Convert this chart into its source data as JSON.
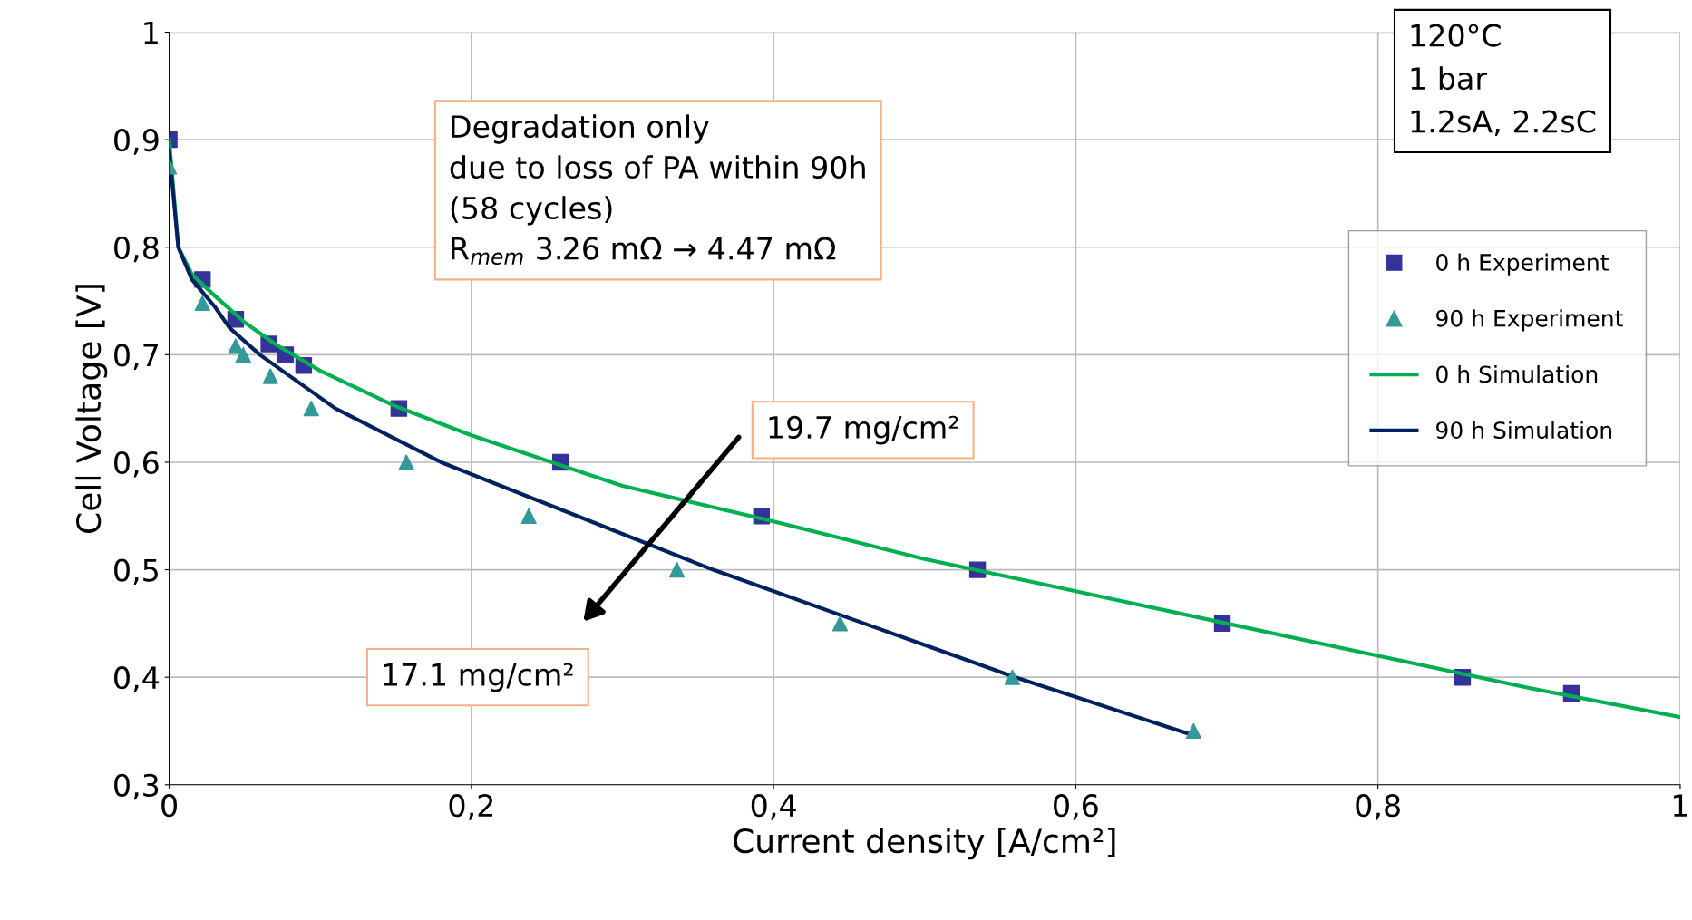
{
  "chart_data": {
    "type": "line",
    "xlabel": "Current density [A/cm²]",
    "ylabel": "Cell Voltage [V]",
    "xlim": [
      0,
      1
    ],
    "ylim": [
      0.3,
      1
    ],
    "xticks": [
      0,
      {
        "value": 0.2,
        "label": "0,2"
      },
      {
        "value": 0.4,
        "label": "0,4"
      },
      {
        "value": 0.6,
        "label": "0,6"
      },
      {
        "value": 0.8,
        "label": "0,8"
      },
      1
    ],
    "yticks": [
      {
        "value": 0.3,
        "label": "0,3"
      },
      {
        "value": 0.4,
        "label": "0,4"
      },
      {
        "value": 0.5,
        "label": "0,5"
      },
      {
        "value": 0.6,
        "label": "0,6"
      },
      {
        "value": 0.7,
        "label": "0,7"
      },
      {
        "value": 0.8,
        "label": "0,8"
      },
      {
        "value": 0.9,
        "label": "0,9"
      },
      1
    ],
    "grid": true,
    "legend": "right",
    "series": [
      {
        "name": "0 h Experiment",
        "type": "scatter",
        "marker": "square",
        "color": "#333399",
        "x": [
          0,
          0.022,
          0.044,
          0.066,
          0.077,
          0.089,
          0.152,
          0.259,
          0.392,
          0.535,
          0.697,
          0.856,
          0.928
        ],
        "values": [
          0.9,
          0.77,
          0.733,
          0.71,
          0.7,
          0.69,
          0.65,
          0.6,
          0.55,
          0.5,
          0.45,
          0.4,
          0.385
        ]
      },
      {
        "name": "90 h Experiment",
        "type": "scatter",
        "marker": "triangle",
        "color": "#339999",
        "x": [
          0,
          0.022,
          0.044,
          0.049,
          0.067,
          0.094,
          0.157,
          0.238,
          0.336,
          0.444,
          0.558,
          0.678
        ],
        "values": [
          0.875,
          0.748,
          0.708,
          0.7,
          0.68,
          0.65,
          0.6,
          0.55,
          0.5,
          0.45,
          0.4,
          0.35
        ]
      },
      {
        "name": "0 h Simulation",
        "color": "#00b050",
        "x": [
          0,
          0.006,
          0.015,
          0.03,
          0.05,
          0.07,
          0.1,
          0.15,
          0.2,
          0.3,
          0.4,
          0.5,
          0.6,
          0.7,
          0.8,
          0.9,
          1.0
        ],
        "values": [
          0.9,
          0.8,
          0.775,
          0.755,
          0.73,
          0.71,
          0.685,
          0.652,
          0.625,
          0.578,
          0.545,
          0.51,
          0.48,
          0.45,
          0.42,
          0.39,
          0.363
        ]
      },
      {
        "name": "90 h Simulation",
        "color": "#002060",
        "x": [
          0,
          0.006,
          0.015,
          0.03,
          0.04,
          0.06,
          0.08,
          0.11,
          0.18,
          0.27,
          0.36,
          0.46,
          0.56,
          0.68
        ],
        "values": [
          0.89,
          0.8,
          0.77,
          0.745,
          0.725,
          0.7,
          0.68,
          0.65,
          0.6,
          0.55,
          0.5,
          0.45,
          0.4,
          0.345
        ]
      }
    ],
    "annotations": [
      "Degradation only\ndue to loss of PA within 90h\n(58 cycles)\nR$_{mem}$ 3.26 mΩ → 4.47 mΩ",
      "120°C\n1 bar\n1.2sA, 2.2sC",
      "19.7 mg/cm²",
      "17.1 mg/cm²"
    ]
  }
}
